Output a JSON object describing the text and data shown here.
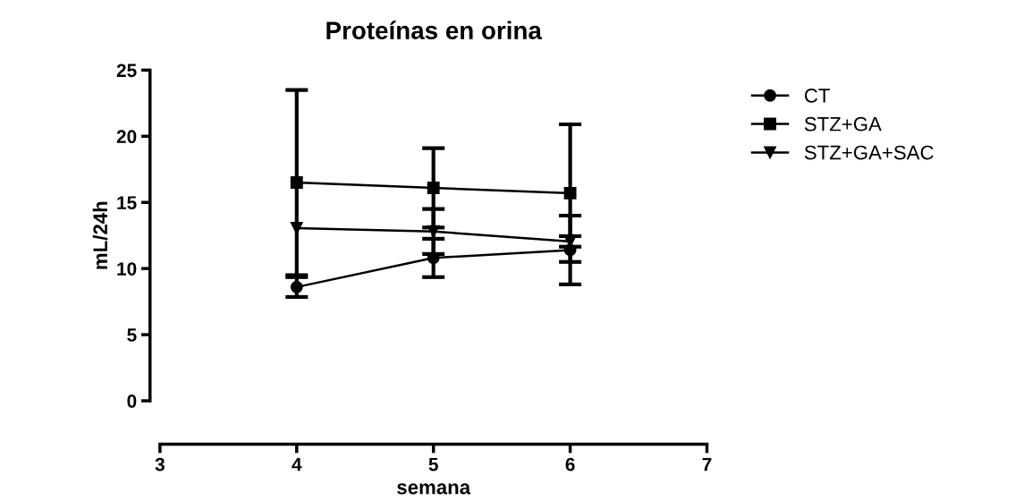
{
  "chart_data": {
    "type": "line",
    "title": "Proteínas en orina",
    "xlabel": "semana",
    "ylabel": "mL/24h",
    "x": [
      4,
      5,
      6
    ],
    "xlim": [
      3,
      7
    ],
    "xticks": [
      3,
      4,
      5,
      6,
      7
    ],
    "ylim": [
      0,
      25
    ],
    "yticks": [
      0,
      5,
      10,
      15,
      20,
      25
    ],
    "grid": false,
    "legend": "right",
    "series": [
      {
        "name": "CT",
        "color": "#000000",
        "marker": "circle",
        "values": [
          8.6,
          10.8,
          11.4
        ],
        "errors": [
          0.75,
          1.45,
          2.6
        ]
      },
      {
        "name": "STZ+GA",
        "color": "#000000",
        "marker": "square",
        "values": [
          16.5,
          16.1,
          15.7
        ],
        "errors": [
          7.0,
          3.0,
          5.2
        ]
      },
      {
        "name": "STZ+GA+SAC",
        "color": "#000000",
        "marker": "triangle_down",
        "values": [
          13.05,
          12.8,
          12.05
        ],
        "errors": [
          null,
          1.7,
          0.4
        ]
      }
    ]
  }
}
